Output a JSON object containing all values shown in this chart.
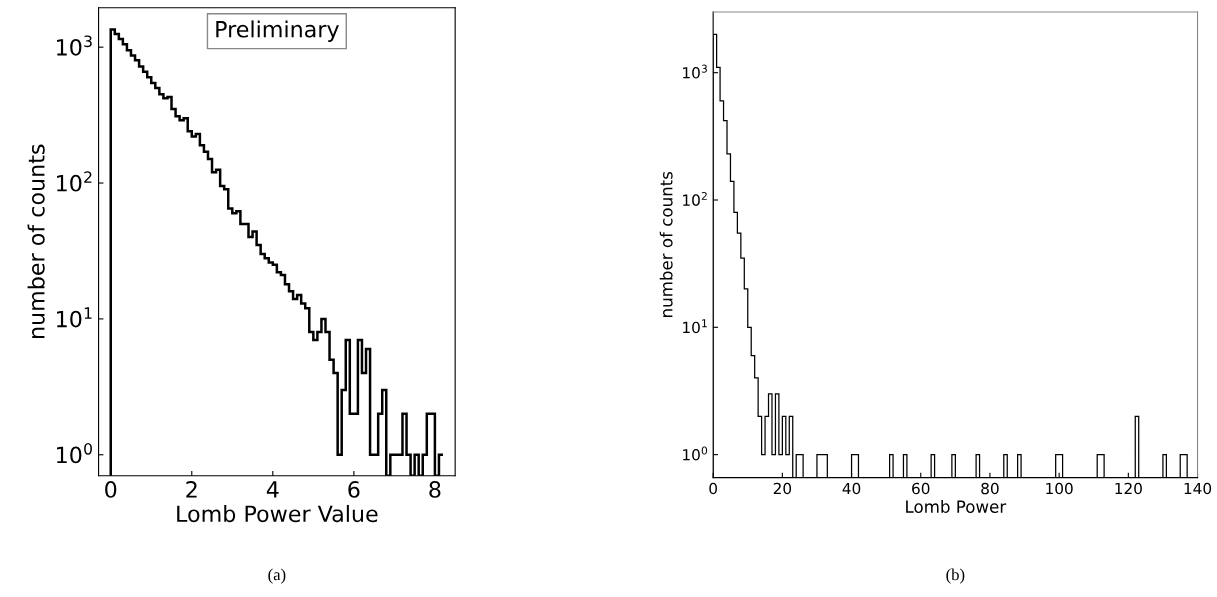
{
  "chart_data": [
    {
      "type": "histogram",
      "xlabel": "Lomb Power Value",
      "ylabel": "number of counts",
      "log": true,
      "bins": [
        0,
        0.1,
        0.2,
        0.3,
        0.4,
        0.5,
        0.6,
        0.7,
        0.8,
        0.9,
        1,
        1.1,
        1.2,
        1.3,
        1.4,
        1.5,
        1.6,
        1.7,
        1.8,
        1.9,
        2,
        2.1,
        2.2,
        2.3,
        2.4,
        2.5,
        2.6,
        2.7,
        2.8,
        2.9,
        3,
        3.1,
        3.2,
        3.3,
        3.4,
        3.5,
        3.6,
        3.7,
        3.8,
        3.9,
        4,
        4.1,
        4.2,
        4.3,
        4.4,
        4.5,
        4.6,
        4.7,
        4.8,
        4.9,
        5,
        5.1,
        5.2,
        5.3,
        5.4,
        5.5,
        5.6,
        5.7,
        5.8,
        5.9,
        6,
        6.1,
        6.2,
        6.3,
        6.4,
        6.5,
        6.6,
        6.7,
        6.8,
        6.9,
        7,
        7.1,
        7.2,
        7.3,
        7.4,
        7.5,
        7.6,
        7.7,
        7.8,
        7.9,
        8,
        8.1,
        8.2
      ],
      "values": [
        1350,
        1250,
        1150,
        1050,
        950,
        870,
        800,
        720,
        660,
        600,
        545,
        500,
        450,
        420,
        430,
        350,
        310,
        290,
        300,
        240,
        220,
        230,
        190,
        170,
        150,
        120,
        125,
        95,
        90,
        65,
        60,
        62,
        50,
        50,
        40,
        44,
        35,
        30,
        28,
        26,
        25,
        22,
        21,
        18,
        16,
        14,
        15,
        13,
        12,
        8,
        7,
        8,
        10,
        8,
        5,
        4,
        1,
        3,
        7,
        2,
        2,
        7,
        4,
        6,
        1,
        1,
        2,
        3,
        null,
        1,
        1,
        1,
        2,
        1,
        null,
        1,
        null,
        1,
        2,
        2,
        null,
        1
      ],
      "color": "#000000",
      "xlim": [
        -0.3,
        8.5
      ],
      "xticks": [
        0,
        2,
        4,
        6,
        8
      ],
      "ylim": [
        0.7,
        1950
      ],
      "yticks": [
        {
          "value": 1,
          "label": "10$^{0}$"
        },
        {
          "value": 10,
          "label": "10$^{1}$"
        },
        {
          "value": 100,
          "label": "10$^{2}$"
        },
        {
          "value": 1000,
          "label": "10$^{3}$"
        }
      ],
      "annotations": [
        "Preliminary",
        "(a)"
      ]
    },
    {
      "type": "histogram",
      "xlabel": "Lomb Power",
      "ylabel": "number of counts",
      "log": true,
      "bins": [
        0,
        1,
        2,
        3,
        4,
        5,
        6,
        7,
        8,
        9,
        10,
        11,
        12,
        13,
        14,
        15,
        16,
        17,
        18,
        19,
        20,
        21,
        22,
        23,
        24,
        25,
        26,
        27,
        28,
        29,
        30,
        31,
        32,
        33,
        34,
        35,
        36,
        37,
        38,
        39,
        40,
        41,
        42,
        43,
        44,
        45,
        46,
        47,
        48,
        49,
        50,
        51,
        52,
        53,
        54,
        55,
        56,
        57,
        58,
        59,
        60,
        61,
        62,
        63,
        64,
        65,
        66,
        67,
        68,
        69,
        70,
        71,
        72,
        73,
        74,
        75,
        76,
        77,
        78,
        79,
        80,
        81,
        82,
        83,
        84,
        85,
        86,
        87,
        88,
        89,
        90,
        91,
        92,
        93,
        94,
        95,
        96,
        97,
        98,
        99,
        100,
        101,
        102,
        103,
        104,
        105,
        106,
        107,
        108,
        109,
        110,
        111,
        112,
        113,
        114,
        115,
        116,
        117,
        118,
        119,
        120,
        121,
        122,
        123,
        124,
        125,
        126,
        127,
        128,
        129,
        130,
        131,
        132,
        133,
        134,
        135,
        136,
        137,
        138,
        139,
        140
      ],
      "values": [
        2000,
        1100,
        600,
        420,
        230,
        140,
        80,
        55,
        35,
        20,
        10,
        6,
        4,
        2,
        1,
        2,
        3,
        1,
        3,
        1,
        2,
        1,
        2,
        null,
        1,
        1,
        null,
        null,
        null,
        null,
        1,
        1,
        1,
        null,
        null,
        null,
        null,
        null,
        null,
        null,
        1,
        1,
        null,
        null,
        null,
        null,
        null,
        null,
        null,
        null,
        null,
        1,
        null,
        null,
        null,
        1,
        null,
        null,
        null,
        null,
        null,
        null,
        null,
        1,
        null,
        null,
        null,
        null,
        null,
        1,
        null,
        null,
        null,
        null,
        null,
        null,
        1,
        null,
        null,
        null,
        null,
        null,
        null,
        null,
        1,
        null,
        null,
        null,
        1,
        null,
        null,
        null,
        null,
        null,
        null,
        null,
        null,
        null,
        null,
        1,
        1,
        null,
        null,
        null,
        null,
        null,
        null,
        null,
        null,
        null,
        null,
        1,
        1,
        null,
        null,
        null,
        null,
        null,
        null,
        null,
        null,
        null,
        2,
        null,
        null,
        null,
        null,
        null,
        null,
        null,
        1,
        null,
        null,
        null,
        null,
        1,
        1,
        null,
        null,
        null
      ],
      "color": "#000000",
      "xlim": [
        0,
        140
      ],
      "xticks": [
        0,
        20,
        40,
        60,
        80,
        100,
        120,
        140
      ],
      "ylim": [
        0.66,
        3000
      ],
      "yticks": [
        {
          "value": 1,
          "label": "10$^{0}$"
        },
        {
          "value": 10,
          "label": "10$^{1}$"
        },
        {
          "value": 100,
          "label": "10$^{2}$"
        },
        {
          "value": 1000,
          "label": "10$^{3}$"
        }
      ],
      "annotations": [
        "(b)"
      ]
    }
  ]
}
